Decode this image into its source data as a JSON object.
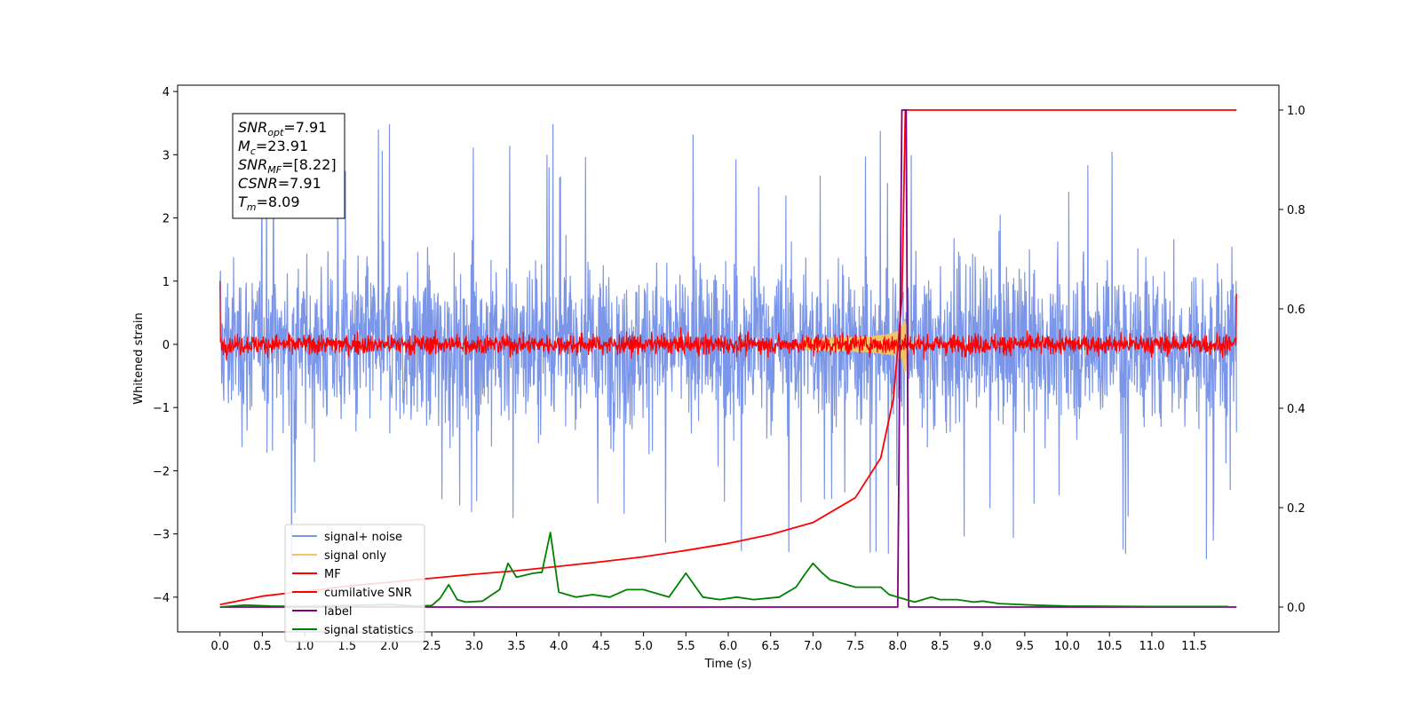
{
  "chart_data": {
    "type": "line",
    "xlabel": "Time (s)",
    "ylabel": "Whitened strain",
    "xlim": [
      -0.5,
      12.5
    ],
    "ylim": [
      -4.55,
      4.1
    ],
    "y2lim": [
      -0.05,
      1.05
    ],
    "x_ticks": [
      "0.0",
      "0.5",
      "1.0",
      "1.5",
      "2.0",
      "2.5",
      "3.0",
      "3.5",
      "4.0",
      "4.5",
      "5.0",
      "5.5",
      "6.0",
      "6.5",
      "7.0",
      "7.5",
      "8.0",
      "8.5",
      "9.0",
      "9.5",
      "10.0",
      "10.5",
      "11.0",
      "11.5"
    ],
    "y_ticks": [
      "4",
      "3",
      "2",
      "1",
      "0",
      "−1",
      "−2",
      "−3",
      "−4"
    ],
    "y2_ticks": [
      "1.0",
      "0.8",
      "0.6",
      "0.4",
      "0.2",
      "0.0"
    ],
    "grid": false,
    "legend_position": "lower-left",
    "info_box": [
      {
        "base": "SNR",
        "sub": "opt",
        "value": "=7.91"
      },
      {
        "base": "M",
        "sub": "c",
        "value": "=23.91"
      },
      {
        "base": "SNR",
        "sub": "MF",
        "value": "=[8.22]"
      },
      {
        "base": "CSNR",
        "sub": "",
        "value": "=7.91"
      },
      {
        "base": "T",
        "sub": "m",
        "value": "=8.09"
      }
    ],
    "series": [
      {
        "name": "signal+ noise",
        "color": "#7b96e8",
        "axis": "left",
        "kind": "noise",
        "x_range": [
          0,
          12
        ],
        "amplitude_typical": 1.0,
        "peak_max": 3.75,
        "peak_min": -4.2
      },
      {
        "name": "signal only",
        "color": "#f2c46a",
        "axis": "left",
        "kind": "chirp",
        "merger_time": 8.09,
        "peak": 0.45
      },
      {
        "name": "MF",
        "color": "#ff0000",
        "axis": "left",
        "kind": "noise",
        "x_range": [
          0,
          12
        ],
        "amplitude_typical": 0.12,
        "edge_values": [
          1.0,
          0.8
        ]
      },
      {
        "name": "cumilative SNR",
        "color": "#ff0000",
        "axis": "right",
        "x": [
          0,
          0.5,
          1.0,
          1.5,
          2.0,
          2.5,
          3.0,
          3.5,
          4.0,
          4.5,
          5.0,
          5.5,
          6.0,
          6.5,
          7.0,
          7.5,
          7.8,
          7.95,
          8.05,
          8.09,
          10.0,
          12.0
        ],
        "y": [
          0.005,
          0.022,
          0.032,
          0.042,
          0.05,
          0.058,
          0.066,
          0.073,
          0.082,
          0.091,
          0.101,
          0.114,
          0.128,
          0.146,
          0.17,
          0.22,
          0.3,
          0.42,
          0.62,
          1.0,
          1.0,
          1.0
        ]
      },
      {
        "name": "label",
        "color": "#800080",
        "axis": "right",
        "x": [
          0,
          8.0,
          8.05,
          8.1,
          8.13,
          12.0
        ],
        "y": [
          0,
          0,
          1.0,
          1.0,
          0,
          0
        ]
      },
      {
        "name": "signal statistics",
        "color": "#008000",
        "axis": "right",
        "x": [
          0,
          0.3,
          0.6,
          1.0,
          1.5,
          2.0,
          2.3,
          2.5,
          2.6,
          2.7,
          2.8,
          2.9,
          3.1,
          3.3,
          3.4,
          3.5,
          3.7,
          3.8,
          3.9,
          4.0,
          4.2,
          4.4,
          4.6,
          4.8,
          5.0,
          5.3,
          5.5,
          5.7,
          5.9,
          6.1,
          6.3,
          6.6,
          6.8,
          6.9,
          7.0,
          7.1,
          7.2,
          7.3,
          7.5,
          7.8,
          7.9,
          8.0,
          8.2,
          8.4,
          8.5,
          8.7,
          8.9,
          9.0,
          9.2,
          9.6,
          10.0,
          11.0,
          11.9
        ],
        "y": [
          0,
          0.004,
          0.002,
          0.001,
          0.003,
          0.005,
          0.002,
          0.003,
          0.018,
          0.045,
          0.015,
          0.01,
          0.012,
          0.035,
          0.088,
          0.06,
          0.068,
          0.07,
          0.15,
          0.03,
          0.02,
          0.025,
          0.02,
          0.035,
          0.035,
          0.02,
          0.068,
          0.02,
          0.015,
          0.02,
          0.015,
          0.02,
          0.04,
          0.065,
          0.088,
          0.07,
          0.055,
          0.05,
          0.04,
          0.04,
          0.025,
          0.02,
          0.01,
          0.02,
          0.015,
          0.015,
          0.01,
          0.012,
          0.007,
          0.004,
          0.002,
          0.001,
          0.001
        ]
      }
    ]
  }
}
